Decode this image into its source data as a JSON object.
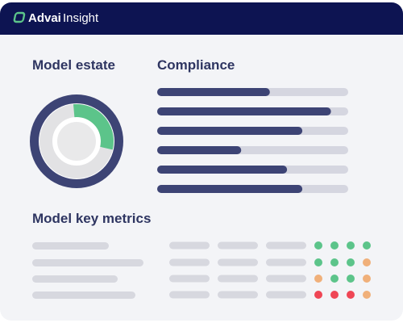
{
  "header": {
    "brand": "Advai",
    "product": "Insight"
  },
  "model_estate": {
    "title": "Model estate",
    "share": 30,
    "color": "#5cc48a"
  },
  "compliance": {
    "title": "Compliance",
    "values": [
      59,
      91,
      76,
      44,
      68,
      76
    ],
    "max": 100,
    "color": "#3d4475",
    "track": "#d5d6e0"
  },
  "metrics": {
    "title": "Model key metrics",
    "rows": [
      [
        "#5cc48a",
        "#5cc48a",
        "#5cc48a",
        "#5cc48a"
      ],
      [
        "#5cc48a",
        "#5cc48a",
        "#5cc48a",
        "#f0b07a"
      ],
      [
        "#f0b07a",
        "#5cc48a",
        "#5cc48a",
        "#f0b07a"
      ],
      [
        "#ef4655",
        "#ef4655",
        "#ef4655",
        "#f0b07a"
      ]
    ]
  }
}
